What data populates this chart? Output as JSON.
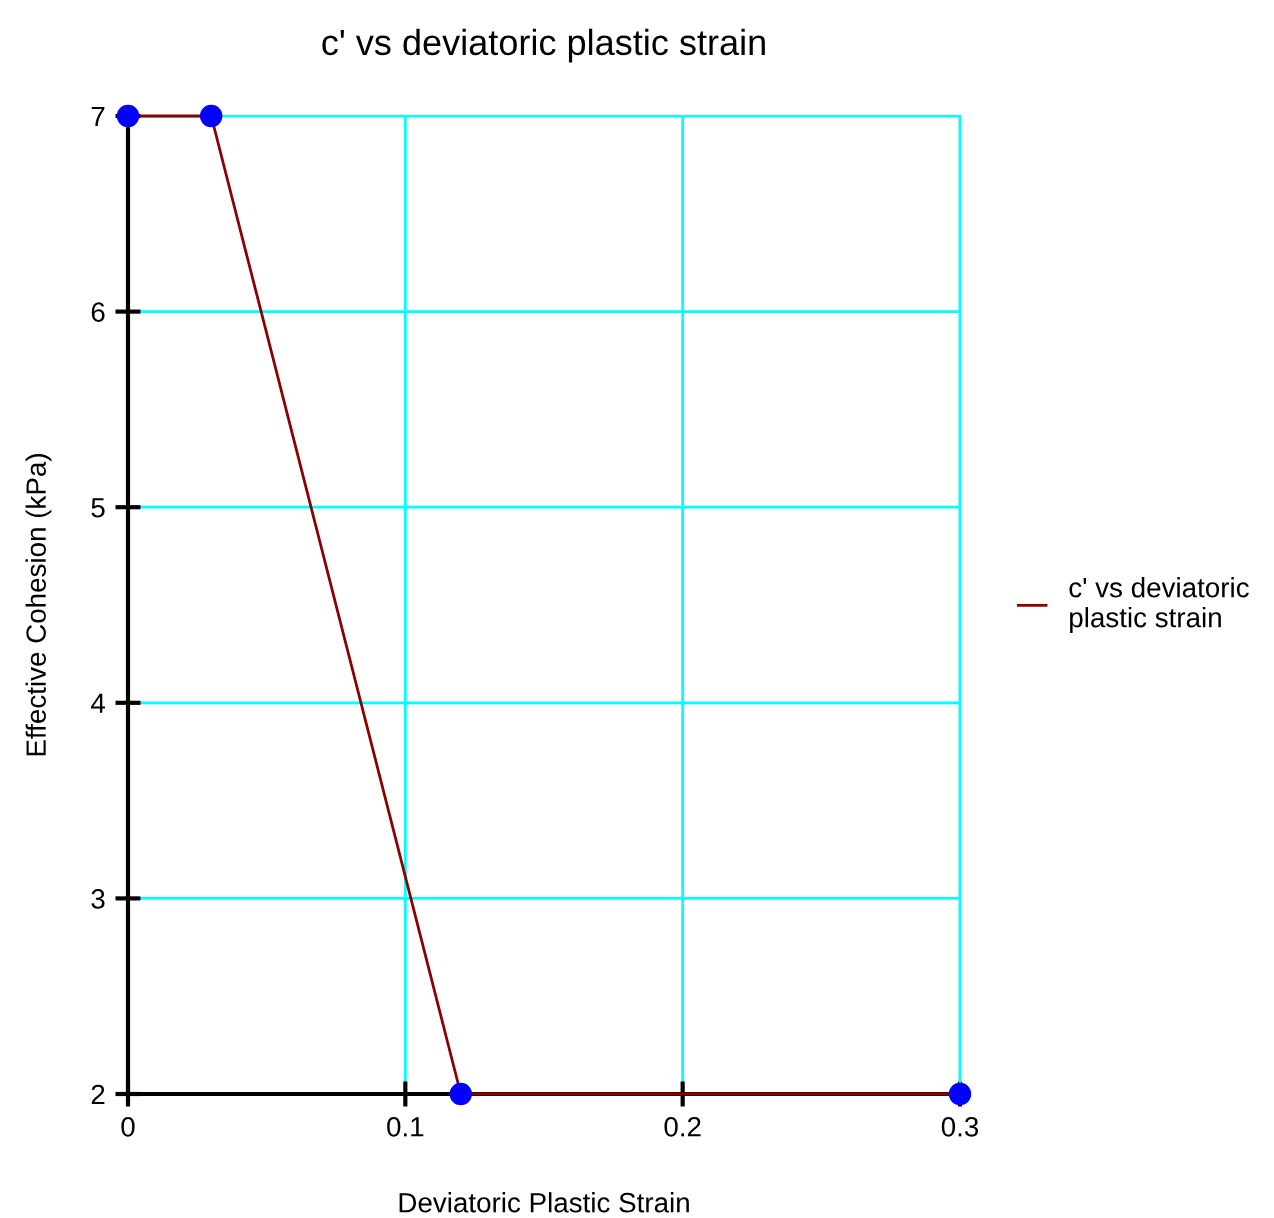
{
  "chart_data": {
    "type": "line",
    "title": "c' vs deviatoric plastic strain",
    "xlabel": "Deviatoric Plastic Strain",
    "ylabel": "Effective Cohesion (kPa)",
    "series": [
      {
        "name": "c' vs deviatoric plastic strain",
        "color": "#8b0000",
        "marker": "none",
        "x": [
          0,
          0.03,
          0.12,
          0.3
        ],
        "values": [
          7,
          7,
          2,
          2
        ]
      },
      {
        "color": "#0000ff",
        "type": "scatter",
        "marker": "circle",
        "x": [
          0,
          0.03,
          0.12,
          0.3
        ],
        "values": [
          7,
          7,
          2,
          2
        ]
      }
    ],
    "xlim": [
      0,
      0.3
    ],
    "ylim": [
      2,
      7
    ],
    "xticks": [
      0,
      0.1,
      0.2,
      0.3
    ],
    "yticks": [
      2,
      3,
      4,
      5,
      6,
      7
    ],
    "grid": true,
    "legend": "right"
  }
}
